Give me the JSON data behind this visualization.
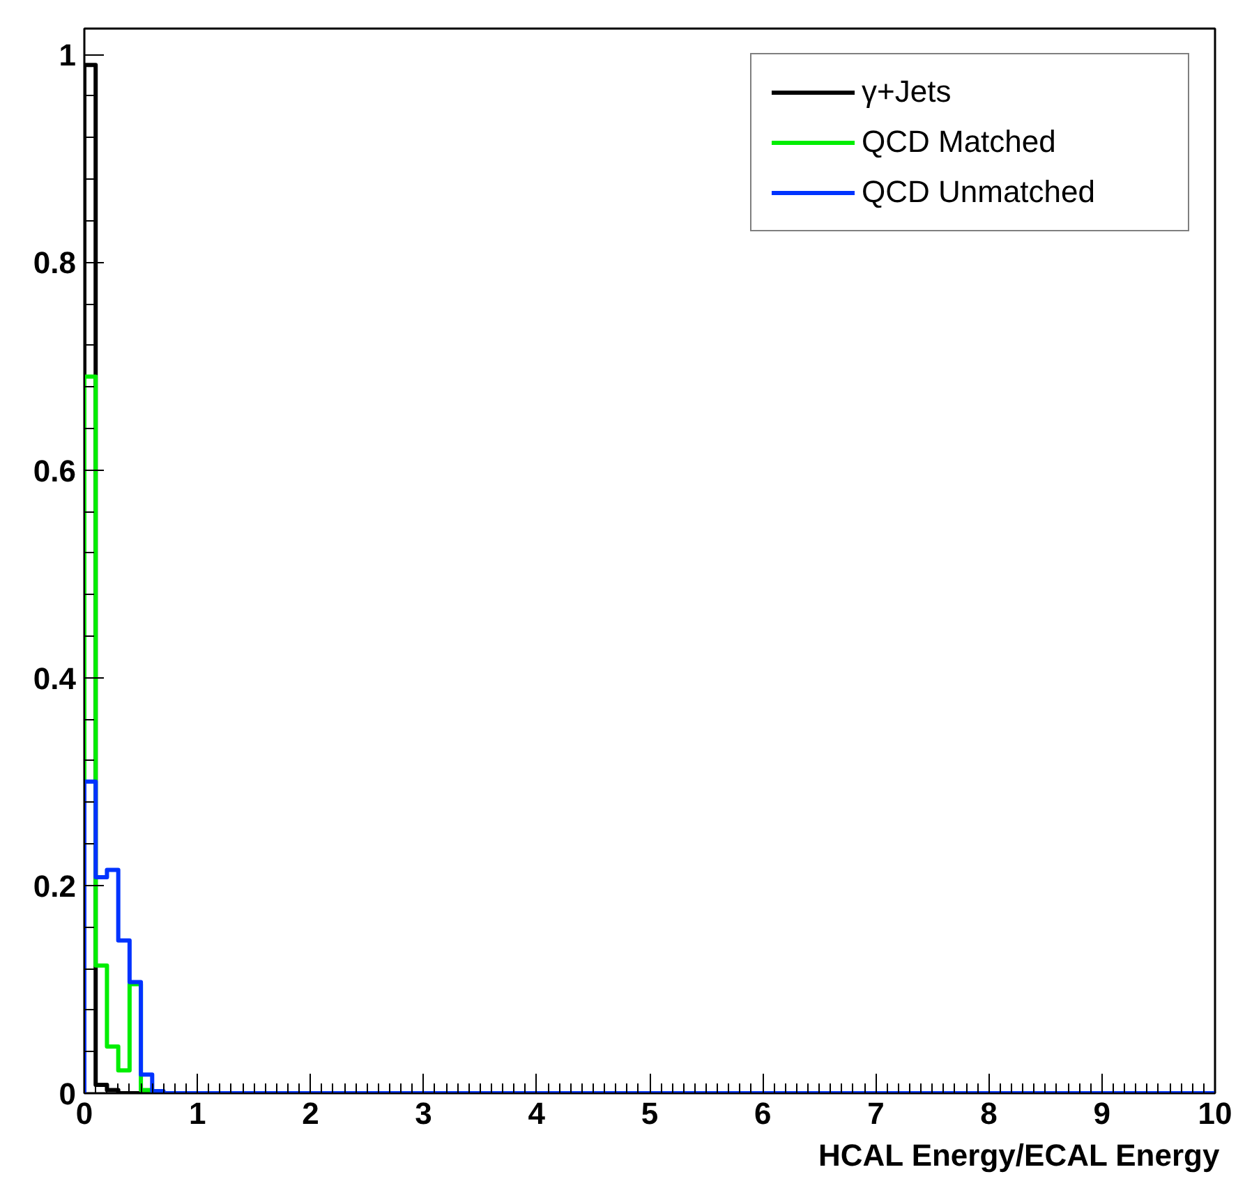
{
  "chart_data": {
    "type": "histogram",
    "xlabel": "HCAL Energy/ECAL Energy",
    "bins": [
      0,
      0.1,
      0.2,
      0.3,
      0.4,
      0.5,
      0.6,
      0.7,
      0.8,
      0.9,
      1,
      1.1,
      1.2,
      1.3,
      1.4,
      1.5,
      1.6,
      1.7,
      1.8,
      1.9,
      2,
      2.1,
      2.2,
      2.3,
      2.4,
      2.5,
      2.6,
      2.7,
      2.8,
      2.9,
      3,
      3.1,
      3.2,
      3.3,
      3.4,
      3.5,
      3.6,
      3.7,
      3.8,
      3.9,
      4,
      4.1,
      4.2,
      4.3,
      4.4,
      4.5,
      4.6,
      4.7,
      4.8,
      4.9,
      5,
      5.1,
      5.2,
      5.3,
      5.4,
      5.5,
      5.6,
      5.7,
      5.8,
      5.9,
      6,
      6.1,
      6.2,
      6.3,
      6.4,
      6.5,
      6.6,
      6.7,
      6.8,
      6.9,
      7,
      7.1,
      7.2,
      7.3,
      7.4,
      7.5,
      7.6,
      7.7,
      7.8,
      7.9,
      8,
      8.1,
      8.2,
      8.3,
      8.4,
      8.5,
      8.6,
      8.7,
      8.8,
      8.9,
      9,
      9.1,
      9.2,
      9.3,
      9.4,
      9.5,
      9.6,
      9.7,
      9.8,
      9.9,
      10
    ],
    "series": [
      {
        "name": "γ+Jets",
        "color": "#000000",
        "values": [
          0.99,
          0.008,
          0.003,
          0,
          0,
          0,
          0,
          0,
          0,
          0,
          0,
          0,
          0,
          0,
          0,
          0,
          0,
          0,
          0,
          0,
          0,
          0,
          0,
          0,
          0,
          0,
          0,
          0,
          0,
          0,
          0,
          0,
          0,
          0,
          0,
          0,
          0,
          0,
          0,
          0,
          0,
          0,
          0,
          0,
          0,
          0,
          0,
          0,
          0,
          0,
          0,
          0,
          0,
          0,
          0,
          0,
          0,
          0,
          0,
          0,
          0,
          0,
          0,
          0,
          0,
          0,
          0,
          0,
          0,
          0,
          0,
          0,
          0,
          0,
          0,
          0,
          0,
          0,
          0,
          0,
          0,
          0,
          0,
          0,
          0,
          0,
          0,
          0,
          0,
          0,
          0,
          0,
          0,
          0,
          0,
          0,
          0,
          0,
          0,
          0
        ]
      },
      {
        "name": "QCD Matched",
        "color": "#00ee00",
        "values": [
          0.69,
          0.123,
          0.045,
          0.022,
          0.105,
          0.003,
          0,
          0,
          0,
          0,
          0,
          0,
          0,
          0,
          0,
          0,
          0,
          0,
          0,
          0,
          0,
          0,
          0,
          0,
          0,
          0,
          0,
          0,
          0,
          0,
          0,
          0,
          0,
          0,
          0,
          0,
          0,
          0,
          0,
          0,
          0,
          0,
          0,
          0,
          0,
          0,
          0,
          0,
          0,
          0,
          0,
          0,
          0,
          0,
          0,
          0,
          0,
          0,
          0,
          0,
          0,
          0,
          0,
          0,
          0,
          0,
          0,
          0,
          0,
          0,
          0,
          0,
          0,
          0,
          0,
          0,
          0,
          0,
          0,
          0,
          0,
          0,
          0,
          0,
          0,
          0,
          0,
          0,
          0,
          0,
          0,
          0,
          0,
          0,
          0,
          0,
          0,
          0,
          0,
          0
        ]
      },
      {
        "name": "QCD Unmatched",
        "color": "#0033ff",
        "values": [
          0.3,
          0.208,
          0.215,
          0.147,
          0.107,
          0.018,
          0.002,
          0,
          0,
          0,
          0,
          0,
          0,
          0,
          0,
          0,
          0,
          0,
          0,
          0,
          0,
          0,
          0,
          0,
          0,
          0,
          0,
          0,
          0,
          0,
          0,
          0,
          0,
          0,
          0,
          0,
          0,
          0,
          0,
          0,
          0,
          0,
          0,
          0,
          0,
          0,
          0,
          0,
          0,
          0,
          0,
          0,
          0,
          0,
          0,
          0,
          0,
          0,
          0,
          0,
          0,
          0,
          0,
          0,
          0,
          0,
          0,
          0,
          0,
          0,
          0,
          0,
          0,
          0,
          0,
          0,
          0,
          0,
          0,
          0,
          0,
          0,
          0,
          0,
          0,
          0,
          0,
          0,
          0,
          0,
          0,
          0,
          0,
          0,
          0,
          0,
          0,
          0,
          0,
          0
        ]
      }
    ],
    "xlim": [
      0,
      10
    ],
    "ylim": [
      0,
      1.025
    ],
    "xticks": [
      0,
      1,
      2,
      3,
      4,
      5,
      6,
      7,
      8,
      9,
      10
    ],
    "yticks": [
      0,
      {
        "value": 0.2,
        "label": "0.2"
      },
      {
        "value": 0.4,
        "label": "0.4"
      },
      {
        "value": 0.6,
        "label": "0.6"
      },
      {
        "value": 0.8,
        "label": "0.8"
      },
      1
    ],
    "grid": false,
    "legend": "top right"
  }
}
